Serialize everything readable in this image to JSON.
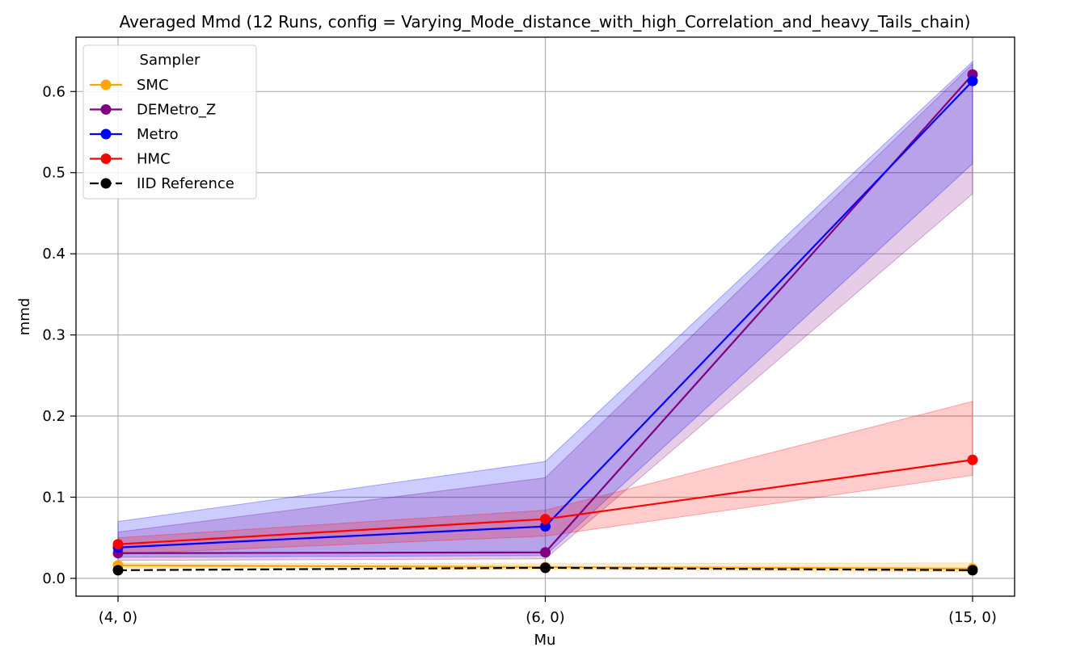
{
  "chart_data": {
    "type": "line",
    "title": "Averaged Mmd (12 Runs, config = Varying_Mode_distance_with_high_Correlation_and_heavy_Tails_chain)",
    "xlabel": "Mu",
    "ylabel": "mmd",
    "categories": [
      "(4, 0)",
      "(6, 0)",
      "(15, 0)"
    ],
    "ylim": [
      -0.022,
      0.667
    ],
    "yticks": [
      0.0,
      0.1,
      0.2,
      0.3,
      0.4,
      0.5,
      0.6
    ],
    "ytick_labels": [
      "0.0",
      "0.1",
      "0.2",
      "0.3",
      "0.4",
      "0.5",
      "0.6"
    ],
    "grid": true,
    "legend": {
      "title": "Sampler",
      "position": "top-left"
    },
    "series": [
      {
        "name": "SMC",
        "color": "#ffa500",
        "dashed": false,
        "values": [
          0.016,
          0.014,
          0.012
        ],
        "band_low": [
          0.013,
          0.011,
          0.008
        ],
        "band_high": [
          0.019,
          0.018,
          0.019
        ]
      },
      {
        "name": "DEMetro_Z",
        "color": "#800080",
        "dashed": false,
        "values": [
          0.031,
          0.032,
          0.621
        ],
        "band_low": [
          0.022,
          0.024,
          0.474
        ],
        "band_high": [
          0.057,
          0.124,
          0.634
        ]
      },
      {
        "name": "Metro",
        "color": "#0000ff",
        "dashed": false,
        "values": [
          0.038,
          0.064,
          0.613
        ],
        "band_low": [
          0.026,
          0.028,
          0.511
        ],
        "band_high": [
          0.07,
          0.144,
          0.637
        ]
      },
      {
        "name": "HMC",
        "color": "#ff0000",
        "dashed": false,
        "values": [
          0.042,
          0.073,
          0.146
        ],
        "band_low": [
          0.03,
          0.052,
          0.127
        ],
        "band_high": [
          0.05,
          0.084,
          0.218
        ]
      },
      {
        "name": "IID Reference",
        "color": "#000000",
        "dashed": true,
        "values": [
          0.01,
          0.013,
          0.01
        ]
      }
    ]
  }
}
